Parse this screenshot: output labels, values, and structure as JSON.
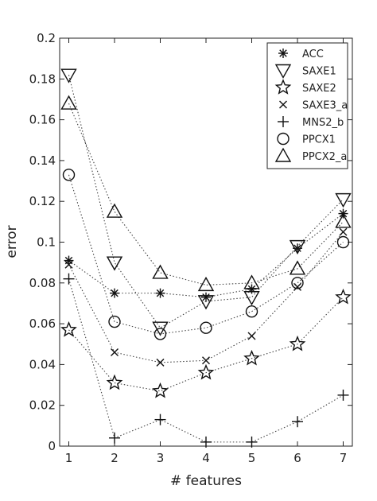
{
  "chart_data": {
    "type": "line",
    "title": "",
    "xlabel": "# features",
    "ylabel": "error",
    "x": [
      1,
      2,
      3,
      4,
      5,
      6,
      7
    ],
    "xlim": [
      0.8,
      7.2
    ],
    "ylim": [
      0,
      0.2
    ],
    "xticks": [
      "1",
      "2",
      "3",
      "4",
      "5",
      "6",
      "7"
    ],
    "yticks": [
      "0",
      "0.02",
      "0.04",
      "0.06",
      "0.08",
      "0.1",
      "0.12",
      "0.14",
      "0.16",
      "0.18",
      "0.2"
    ],
    "grid": false,
    "legend_position": "top-right",
    "series": [
      {
        "name": "ACC",
        "marker": "asterisk",
        "values": [
          0.091,
          0.075,
          0.075,
          0.073,
          0.077,
          0.097,
          0.114
        ]
      },
      {
        "name": "SAXE1",
        "marker": "triangle-down",
        "values": [
          0.182,
          0.09,
          0.058,
          0.071,
          0.073,
          0.098,
          0.121
        ]
      },
      {
        "name": "SAXE2",
        "marker": "star",
        "values": [
          0.057,
          0.031,
          0.027,
          0.036,
          0.043,
          0.05,
          0.073
        ]
      },
      {
        "name": "SAXE3_a",
        "marker": "x",
        "values": [
          0.089,
          0.046,
          0.041,
          0.042,
          0.054,
          0.078,
          0.105
        ]
      },
      {
        "name": "MNS2_b",
        "marker": "plus",
        "values": [
          0.082,
          0.004,
          0.013,
          0.002,
          0.002,
          0.012,
          0.025
        ]
      },
      {
        "name": "PPCX1",
        "marker": "circle",
        "values": [
          0.133,
          0.061,
          0.055,
          0.058,
          0.066,
          0.08,
          0.1
        ]
      },
      {
        "name": "PPCX2_a",
        "marker": "triangle-up",
        "values": [
          0.168,
          0.115,
          0.085,
          0.079,
          0.08,
          0.087,
          0.11
        ]
      }
    ]
  }
}
